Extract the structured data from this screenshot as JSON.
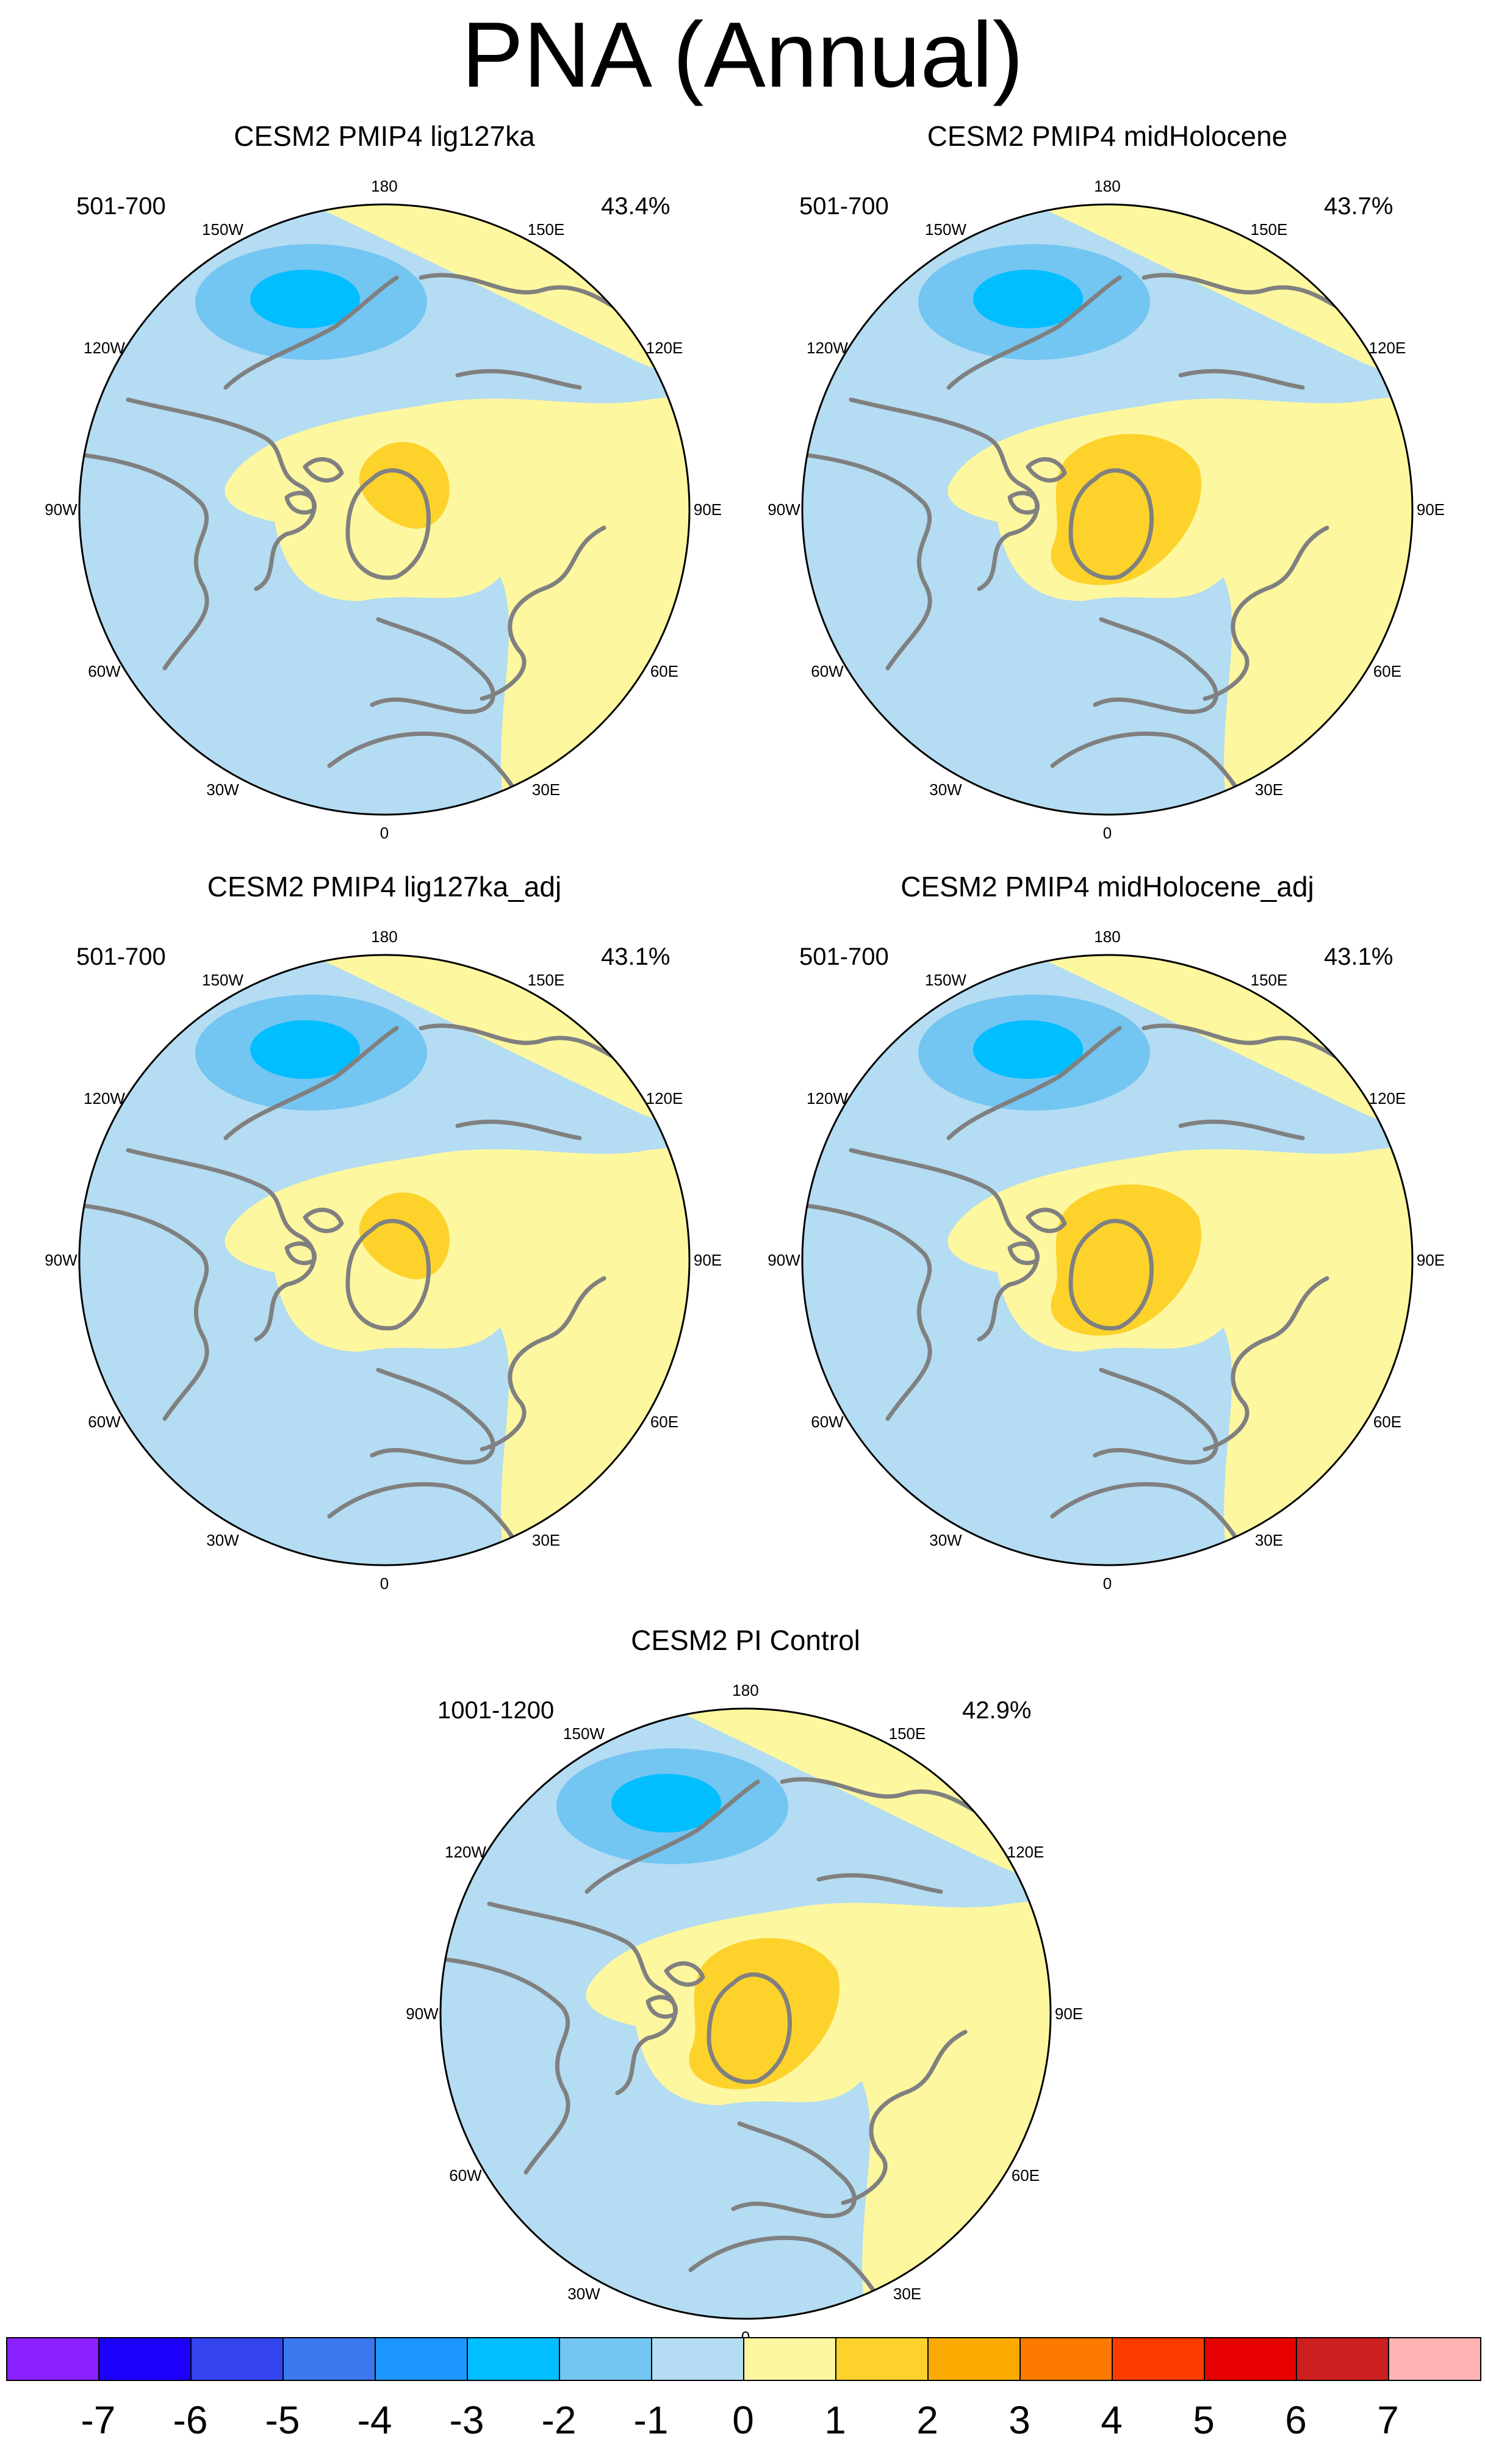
{
  "title": "PNA (Annual)",
  "panels": [
    {
      "name": "CESM2 PMIP4 lig127ka",
      "period": "501-700",
      "variance": "43.4%"
    },
    {
      "name": "CESM2 PMIP4 midHolocene",
      "period": "501-700",
      "variance": "43.7%"
    },
    {
      "name": "CESM2 PMIP4 lig127ka_adj",
      "period": "501-700",
      "variance": "43.1%"
    },
    {
      "name": "CESM2 PMIP4 midHolocene_adj",
      "period": "501-700",
      "variance": "43.1%"
    },
    {
      "name": "CESM2 PI Control",
      "period": "1001-1200",
      "variance": "42.9%"
    }
  ],
  "longitude_labels": [
    "180",
    "150E",
    "120E",
    "90E",
    "60E",
    "30E",
    "0",
    "30W",
    "60W",
    "90W",
    "120W",
    "150W"
  ],
  "colorbar": {
    "labels": [
      "-7",
      "-6",
      "-5",
      "-4",
      "-3",
      "-2",
      "-1",
      "0",
      "1",
      "2",
      "3",
      "4",
      "5",
      "6",
      "7"
    ],
    "colors": [
      "#8a1fff",
      "#1e00ff",
      "#3344ee",
      "#3b78ee",
      "#1e96ff",
      "#00beff",
      "#73c5f2",
      "#b4dcf2",
      "#fdf7a0",
      "#fdd22b",
      "#fdab00",
      "#fd7a00",
      "#ff3c00",
      "#e60000",
      "#cc1f1f",
      "#ffb4b4"
    ]
  },
  "map_colors": {
    "negative_weak": "#b4dcf2",
    "negative_mid": "#73c5f2",
    "negative_strong": "#00beff",
    "positive_weak": "#fdf7a0",
    "positive_mid": "#fdd22b",
    "coastline": "#808080"
  }
}
